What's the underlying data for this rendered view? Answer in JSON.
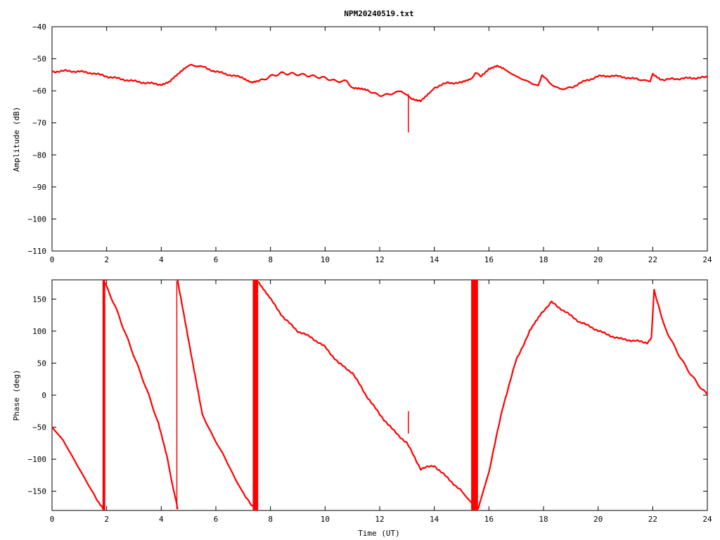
{
  "title": "NPM20240519.txt",
  "colors": {
    "trace": "#ff0000",
    "axes": "#000000",
    "background": "#ffffff"
  },
  "chart_data": [
    {
      "type": "line",
      "title": "NPM20240519.txt",
      "xlabel": "",
      "ylabel": "Amplitude (dB)",
      "xlim": [
        0,
        24
      ],
      "ylim": [
        -110,
        -40
      ],
      "xticks": [
        0,
        2,
        4,
        6,
        8,
        10,
        12,
        14,
        16,
        18,
        20,
        22,
        24
      ],
      "yticks": [
        -40,
        -50,
        -60,
        -70,
        -80,
        -90,
        -100,
        -110
      ],
      "grid": false,
      "series": [
        {
          "x": [
            0,
            0.5,
            1,
            1.5,
            2,
            2.5,
            3,
            3.5,
            4,
            4.3,
            4.6,
            4.9,
            5.1,
            5.5,
            6,
            6.5,
            7,
            7.3,
            7.6,
            8,
            8.4,
            8.8,
            9.2,
            9.6,
            10,
            10.4,
            10.8,
            11,
            11.3,
            11.6,
            12,
            12.4,
            12.8,
            13,
            13.2,
            13.5,
            13.8,
            14,
            14.5,
            15,
            15.3,
            15.5,
            15.7,
            16,
            16.3,
            16.6,
            17,
            17.4,
            17.8,
            17.95,
            18.2,
            18.6,
            19,
            19.5,
            20,
            20.5,
            21,
            21.5,
            21.9,
            22,
            22.3,
            23,
            24
          ],
          "y": [
            -54,
            -53.8,
            -54,
            -54.5,
            -55.5,
            -56.3,
            -57,
            -57.6,
            -58,
            -57.3,
            -55,
            -52.5,
            -52,
            -52.5,
            -54,
            -55,
            -56,
            -57.2,
            -57,
            -55.5,
            -54.5,
            -54.7,
            -55,
            -55.5,
            -56,
            -57,
            -57,
            -59,
            -59.5,
            -60,
            -61.5,
            -61,
            -60,
            -61.5,
            -62.5,
            -63,
            -61,
            -59,
            -57.5,
            -57.5,
            -56.5,
            -54.5,
            -55.5,
            -53,
            -52.3,
            -53.5,
            -55.5,
            -57,
            -58.5,
            -55,
            -57.5,
            -59.5,
            -59,
            -57,
            -55.5,
            -55.3,
            -55.8,
            -56.5,
            -57,
            -55,
            -56.5,
            -56.2,
            -55.8
          ]
        }
      ],
      "annotations": [
        {
          "x": 13.05,
          "y_top": -61,
          "y_bottom": -73,
          "label": ""
        }
      ]
    },
    {
      "type": "line",
      "title": "",
      "xlabel": "Time (UT)",
      "ylabel": "Phase (deg)",
      "xlim": [
        0,
        24
      ],
      "ylim": [
        -180,
        180
      ],
      "xticks": [
        0,
        2,
        4,
        6,
        8,
        10,
        12,
        14,
        16,
        18,
        20,
        22,
        24
      ],
      "yticks": [
        150,
        100,
        50,
        0,
        -50,
        -100,
        -150
      ],
      "grid": false,
      "series": [
        {
          "segments": [
            {
              "x": [
                0,
                0.4,
                0.8,
                1.2,
                1.6,
                1.9
              ],
              "y": [
                -50,
                -70,
                -100,
                -130,
                -160,
                -178
              ]
            },
            {
              "x": [
                1.9,
                2.3,
                2.7,
                3.1,
                3.5,
                3.9,
                4.2,
                4.6
              ],
              "y": [
                178,
                140,
                95,
                50,
                5,
                -45,
                -95,
                -178
              ]
            },
            {
              "x": [
                4.6,
                4.9,
                5.2,
                5.5,
                5.9,
                6.3,
                6.7,
                7.1,
                7.45
              ],
              "y": [
                178,
                110,
                40,
                -30,
                -65,
                -95,
                -130,
                -160,
                -178
              ]
            },
            {
              "x": [
                7.55,
                8,
                8.5,
                9,
                9.5,
                10,
                10.5,
                11,
                11.5,
                12,
                12.5,
                13,
                13.5,
                14,
                14.5,
                15,
                15.4
              ],
              "y": [
                178,
                150,
                120,
                100,
                90,
                75,
                50,
                35,
                0,
                -30,
                -55,
                -75,
                -115,
                -110,
                -130,
                -150,
                -170
              ]
            },
            {
              "x": [
                15.6,
                16,
                16.5,
                17,
                17.5,
                17.95,
                18.3,
                18.8,
                19.3,
                19.8,
                20.3,
                20.8,
                21.3,
                21.8,
                21.95
              ],
              "y": [
                -178,
                -120,
                -20,
                55,
                100,
                130,
                145,
                130,
                115,
                105,
                95,
                88,
                85,
                82,
                90
              ]
            },
            {
              "x": [
                21.95,
                22.05,
                22.4,
                22.8,
                23.2,
                23.6,
                24
              ],
              "y": [
                90,
                165,
                110,
                75,
                45,
                20,
                0
              ]
            }
          ]
        }
      ],
      "wrap_bands": [
        {
          "x_start": 1.85,
          "x_end": 1.95
        },
        {
          "x_start": 7.35,
          "x_end": 7.55
        },
        {
          "x_start": 15.35,
          "x_end": 15.6
        }
      ],
      "annotations": [
        {
          "x": 4.57,
          "y_top": 178,
          "y_bottom": -178,
          "label": ""
        },
        {
          "x": 13.05,
          "y_top": -25,
          "y_bottom": -60,
          "label": ""
        }
      ]
    }
  ]
}
